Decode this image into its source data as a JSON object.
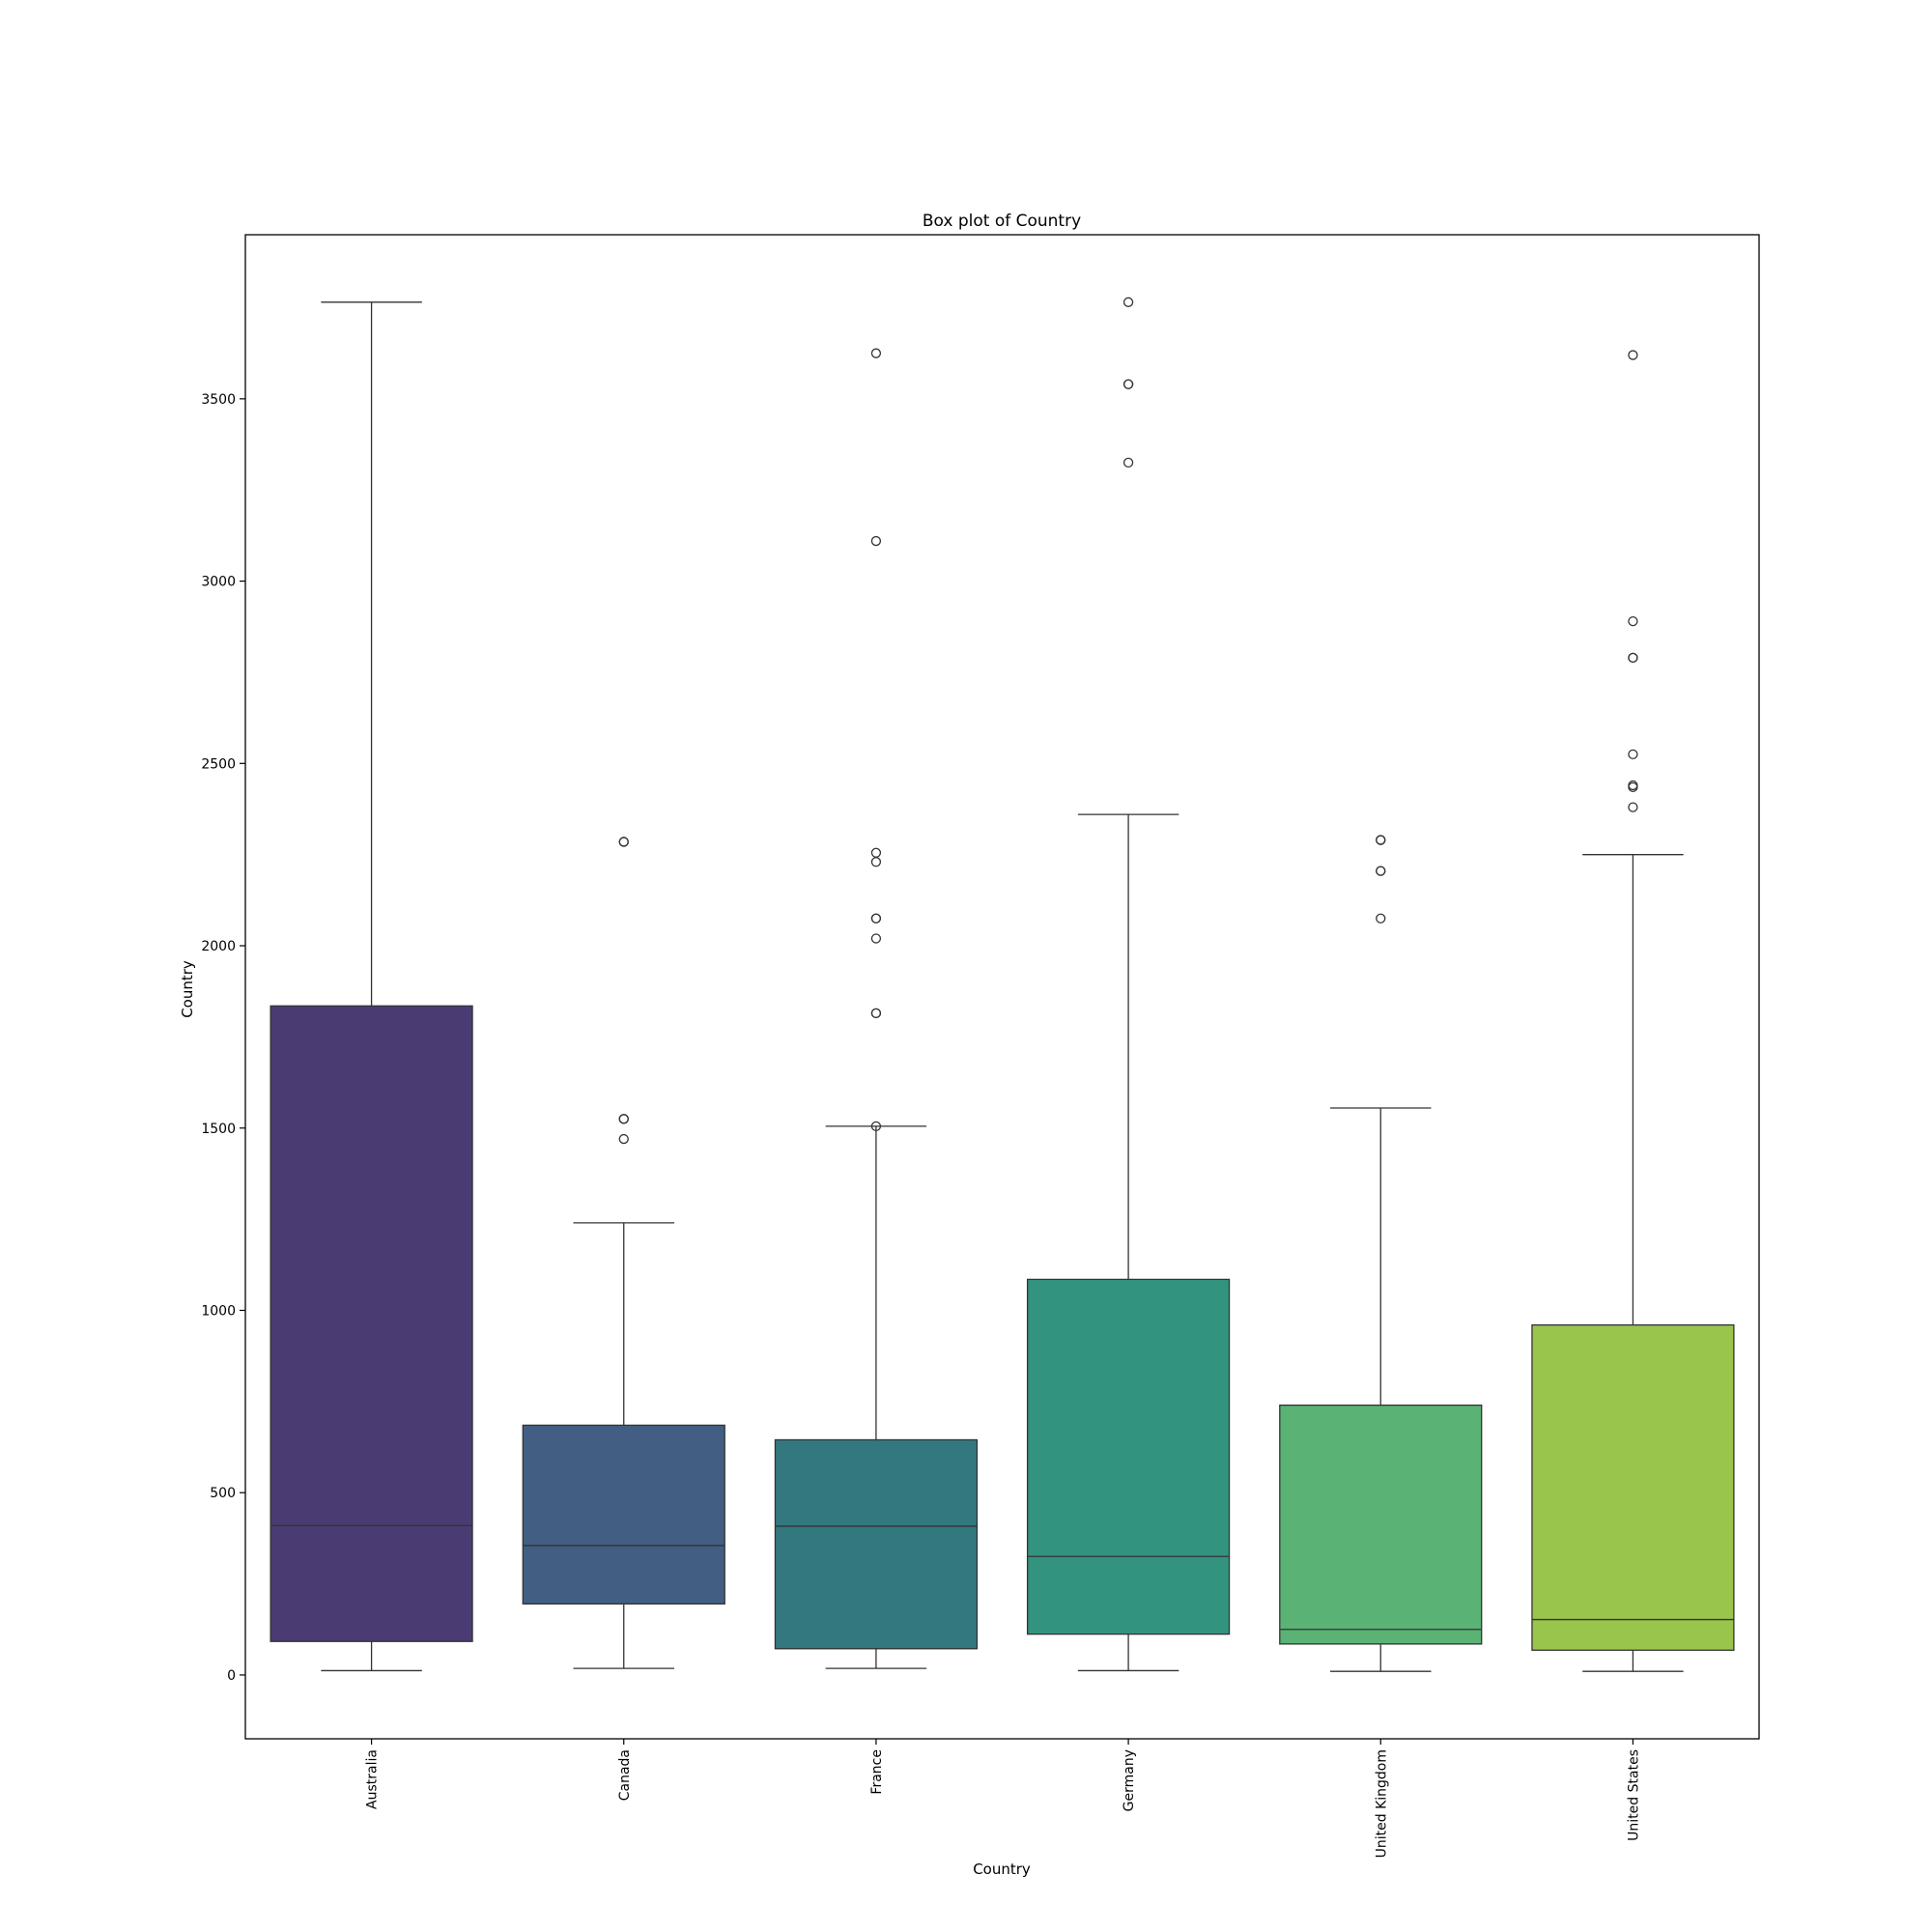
{
  "chart_data": {
    "type": "box",
    "title": "Box plot of Country",
    "xlabel": "Country",
    "ylabel": "Country",
    "ylim": [
      -175,
      3950
    ],
    "yticks": [
      0,
      500,
      1000,
      1500,
      2000,
      2500,
      3000,
      3500
    ],
    "categories": [
      "Australia",
      "Canada",
      "France",
      "Germany",
      "United Kingdom",
      "United States"
    ],
    "colors": [
      "#4a3c73",
      "#425f83",
      "#34787f",
      "#32937e",
      "#5ab275",
      "#99c54d"
    ],
    "boxes": [
      {
        "whisker_low": 12,
        "q1": 92,
        "median": 410,
        "q3": 1835,
        "whisker_high": 3765,
        "outliers": []
      },
      {
        "whisker_low": 18,
        "q1": 195,
        "median": 355,
        "q3": 685,
        "whisker_high": 1240,
        "outliers": [
          1470,
          1525,
          1525,
          2285,
          2285
        ]
      },
      {
        "whisker_low": 18,
        "q1": 72,
        "median": 408,
        "q3": 645,
        "whisker_high": 1505,
        "outliers": [
          1505,
          1815,
          1815,
          2020,
          2075,
          2075,
          2230,
          2255,
          3110,
          3625
        ]
      },
      {
        "whisker_low": 12,
        "q1": 112,
        "median": 325,
        "q3": 1085,
        "whisker_high": 2360,
        "outliers": [
          3325,
          3540,
          3540,
          3765
        ]
      },
      {
        "whisker_low": 10,
        "q1": 85,
        "median": 125,
        "q3": 740,
        "whisker_high": 1555,
        "outliers": [
          2075,
          2205,
          2205,
          2290,
          2290
        ]
      },
      {
        "whisker_low": 10,
        "q1": 68,
        "median": 152,
        "q3": 960,
        "whisker_high": 2250,
        "outliers": [
          2380,
          2435,
          2440,
          2525,
          2790,
          2790,
          2890,
          3620
        ]
      }
    ]
  }
}
